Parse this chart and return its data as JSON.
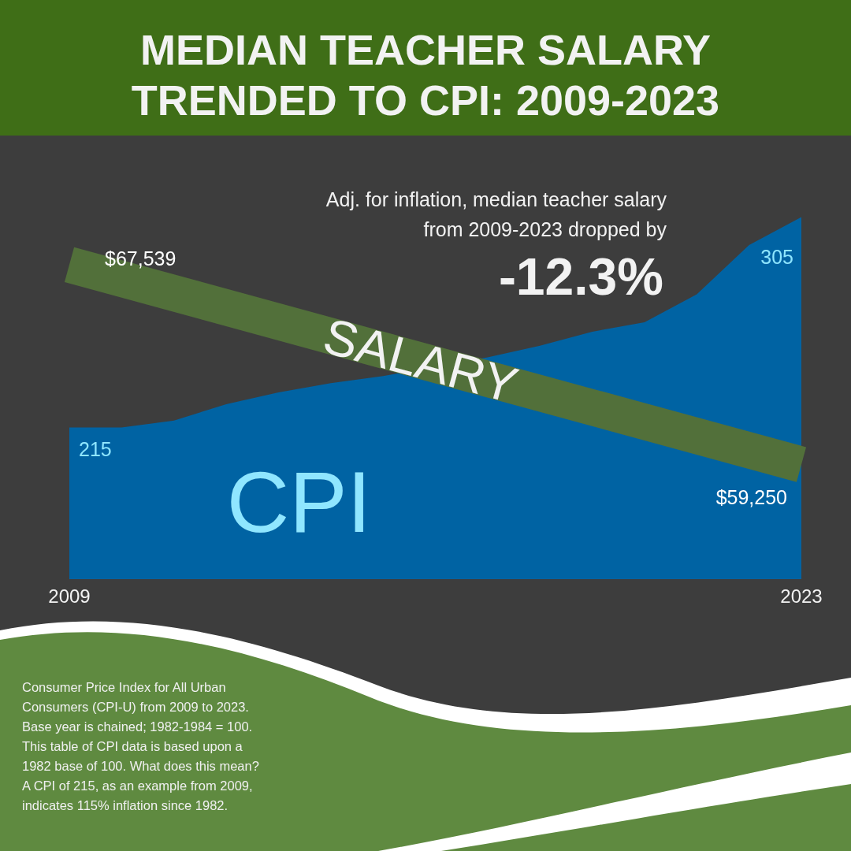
{
  "chart_data": {
    "type": "area",
    "title": "MEDIAN TEACHER SALARY\nTRENDED TO CPI: 2009-2023",
    "x": [
      2009,
      2010,
      2011,
      2012,
      2013,
      2014,
      2015,
      2016,
      2017,
      2018,
      2019,
      2020,
      2021,
      2022,
      2023
    ],
    "xlim": [
      2009,
      2023
    ],
    "xticks": [
      2009,
      2023
    ],
    "tick_labels": "x",
    "series": [
      {
        "name": "CPI",
        "color": "#0063a3",
        "values": [
          215,
          215,
          218,
          225,
          230,
          234,
          237,
          241,
          245,
          250,
          256,
          260,
          272,
          293,
          305
        ],
        "value_labels": [
          "215",
          null,
          null,
          null,
          null,
          null,
          null,
          null,
          null,
          null,
          null,
          null,
          null,
          null,
          "305"
        ]
      },
      {
        "name": "SALARY",
        "type": "line",
        "axis": "y2",
        "color": "#52703a",
        "x": [
          2009,
          2023
        ],
        "values": [
          67539,
          59250
        ],
        "value_labels": [
          "$67,539",
          "$59,250"
        ]
      }
    ],
    "annotations": [
      "Adj. for inflation, median teacher salary\nfrom 2009-2023 dropped by",
      "-12.3%",
      "Consumer Price Index for All Urban\nConsumers (CPI-U) from 2009 to 2023.\nBase year is chained; 1982-1984 = 100.\nThis table of CPI data is based upon a\n1982 base of 100. What does this mean?\nA CPI of 215, as an example from 2009,\nindicates 115% inflation since 1982."
    ]
  }
}
